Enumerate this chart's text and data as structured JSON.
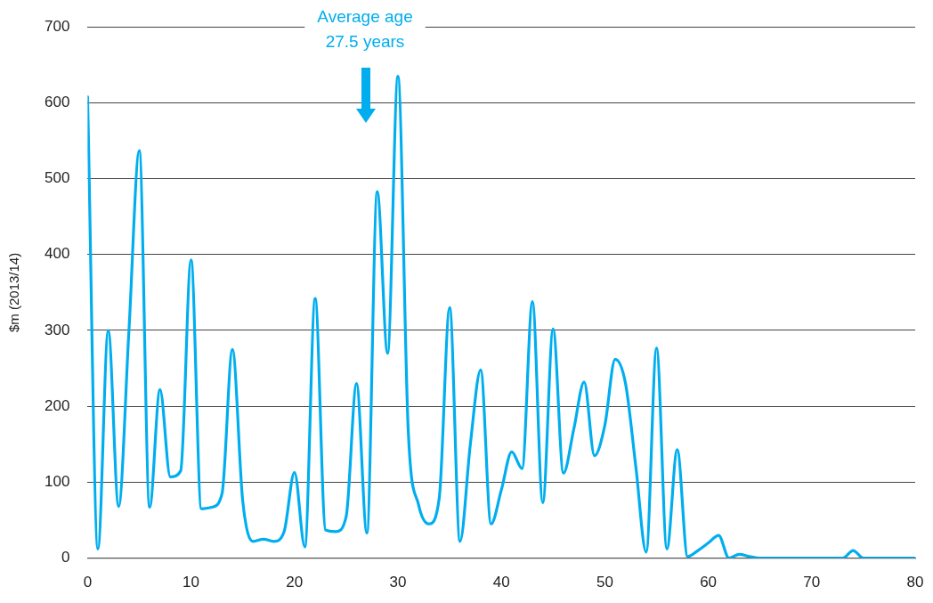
{
  "chart_data": {
    "type": "line",
    "ylabel": "$m (2013/14)",
    "annotations": [
      "Average age\n27.5 years"
    ],
    "x": [
      0,
      1,
      2,
      3,
      4,
      5,
      6,
      7,
      8,
      9,
      10,
      11,
      12,
      13,
      14,
      15,
      16,
      17,
      18,
      19,
      20,
      21,
      22,
      23,
      24,
      25,
      26,
      27,
      28,
      29,
      30,
      31,
      32,
      33,
      34,
      35,
      36,
      37,
      38,
      39,
      40,
      41,
      42,
      43,
      44,
      45,
      46,
      47,
      48,
      49,
      50,
      51,
      52,
      53,
      54,
      55,
      56,
      57,
      58,
      59,
      60,
      61,
      62,
      63,
      64,
      65,
      66,
      67,
      68,
      69,
      70,
      71,
      72,
      73,
      74,
      75,
      76,
      77,
      78,
      79,
      80
    ],
    "series": [
      {
        "color": "#00aeef",
        "values": [
          608,
          12,
          300,
          68,
          300,
          537,
          67,
          222,
          107,
          115,
          393,
          65,
          67,
          85,
          275,
          75,
          22,
          25,
          22,
          35,
          113,
          15,
          342,
          37,
          35,
          55,
          230,
          33,
          483,
          270,
          635,
          167,
          70,
          45,
          80,
          330,
          22,
          150,
          248,
          45,
          90,
          140,
          118,
          338,
          73,
          302,
          112,
          170,
          232,
          135,
          175,
          262,
          230,
          120,
          8,
          277,
          12,
          143,
          2,
          10,
          20,
          30,
          0,
          5,
          2,
          0,
          0,
          0,
          0,
          0,
          0,
          0,
          0,
          0,
          10,
          0,
          0,
          0,
          0,
          0,
          0
        ]
      }
    ],
    "xlim": [
      0,
      80
    ],
    "xticks": [
      0,
      10,
      20,
      30,
      40,
      50,
      60,
      70,
      80
    ],
    "ylim": [
      0,
      700
    ],
    "yticks": [
      0,
      100,
      200,
      300,
      400,
      500,
      600,
      700
    ],
    "grid": "y",
    "legend": false,
    "marker": "none",
    "line_style": "solid"
  }
}
